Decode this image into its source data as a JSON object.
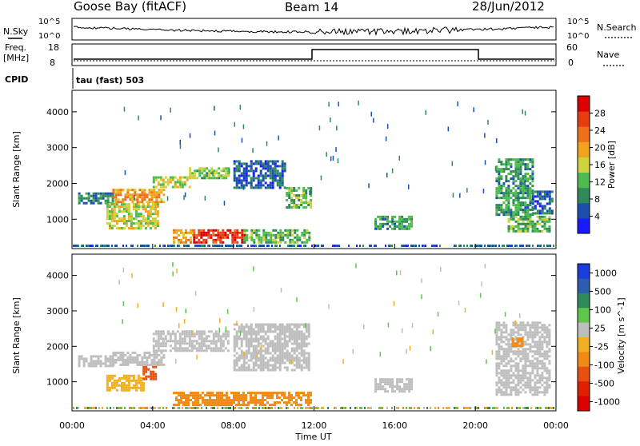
{
  "header": {
    "station": "Goose Bay (fitACF)",
    "beam": "Beam 14",
    "date": "28/Jun/2012"
  },
  "top_panels": {
    "nsky_label": "N.Sky",
    "nsky_top": "10^5",
    "nsky_bottom": "10^0",
    "nsearch_label": "N.Search",
    "nsearch_top": "10^5",
    "nsearch_bottom": "10^0",
    "freq_label": "Freq.",
    "freq_unit": "[MHz]",
    "freq_top": "18",
    "freq_bottom": "8",
    "nave_label": "Nave",
    "nave_top": "60",
    "nave_bottom": "0",
    "cpid_label": "CPID",
    "cpid_value": "tau (fast) 503"
  },
  "colors": {
    "power": [
      "#1a1aff",
      "#1a4fb0",
      "#2f8a5a",
      "#4dbb4d",
      "#cfd23c",
      "#f2a31c",
      "#f0701a",
      "#e83c12",
      "#dd0000"
    ],
    "velocity": [
      "#1a3ddd",
      "#2b5cb0",
      "#2f8a5a",
      "#5ec64a",
      "#bebebe",
      "#f0b020",
      "#f08a14",
      "#e85010",
      "#e02000",
      "#dd0000"
    ]
  },
  "chart_data": [
    {
      "type": "heatmap",
      "title": "Power",
      "xlabel": "Time UT",
      "ylabel": "Slant Range [km]",
      "x_ticks": [
        "00:00",
        "04:00",
        "08:00",
        "12:00",
        "16:00",
        "20:00",
        "00:00"
      ],
      "xlim": [
        0,
        24
      ],
      "y_ticks": [
        1000,
        2000,
        3000,
        4000
      ],
      "ylim": [
        180,
        4600
      ],
      "colorbar": {
        "label": "Power [dB]",
        "ticks": [
          4,
          8,
          12,
          16,
          20,
          24,
          28
        ],
        "range": [
          0,
          32
        ]
      },
      "regions": [
        {
          "t0": 0.3,
          "t1": 2.0,
          "r0": 1450,
          "r1": 1750,
          "value": 8
        },
        {
          "t0": 1.7,
          "t1": 4.2,
          "r0": 780,
          "r1": 1450,
          "value": 16
        },
        {
          "t0": 2.0,
          "t1": 4.5,
          "r0": 1450,
          "r1": 1850,
          "value": 20
        },
        {
          "t0": 4.0,
          "t1": 5.8,
          "r0": 1900,
          "r1": 2200,
          "value": 16
        },
        {
          "t0": 5.8,
          "t1": 7.8,
          "r0": 2150,
          "r1": 2450,
          "value": 14
        },
        {
          "t0": 5.0,
          "t1": 6.0,
          "r0": 380,
          "r1": 720,
          "value": 20
        },
        {
          "t0": 6.0,
          "t1": 8.5,
          "r0": 330,
          "r1": 720,
          "value": 28
        },
        {
          "t0": 8.5,
          "t1": 11.8,
          "r0": 340,
          "r1": 720,
          "value": 12
        },
        {
          "t0": 8.0,
          "t1": 10.6,
          "r0": 1900,
          "r1": 2650,
          "value": 6
        },
        {
          "t0": 10.6,
          "t1": 11.8,
          "r0": 1300,
          "r1": 1900,
          "value": 12
        },
        {
          "t0": 15.0,
          "t1": 16.9,
          "r0": 700,
          "r1": 1100,
          "value": 10
        },
        {
          "t0": 21.0,
          "t1": 22.8,
          "r0": 1100,
          "r1": 2700,
          "value": 10
        },
        {
          "t0": 21.6,
          "t1": 23.7,
          "r0": 650,
          "r1": 1100,
          "value": 12
        },
        {
          "t0": 22.8,
          "t1": 23.8,
          "r0": 1150,
          "r1": 1800,
          "value": 6
        }
      ]
    },
    {
      "type": "heatmap",
      "title": "Velocity",
      "xlabel": "Time UT",
      "ylabel": "Slant Range [km]",
      "x_ticks": [
        "00:00",
        "04:00",
        "08:00",
        "12:00",
        "16:00",
        "20:00",
        "00:00"
      ],
      "xlim": [
        0,
        24
      ],
      "y_ticks": [
        1000,
        2000,
        3000,
        4000
      ],
      "ylim": [
        180,
        4600
      ],
      "colorbar": {
        "label": "Velocity [m s^-1]",
        "ticks": [
          "1000",
          "500",
          "100",
          "25",
          "-25",
          "-100",
          "-500",
          "-1000"
        ]
      },
      "regions": [
        {
          "t0": 0.3,
          "t1": 2.0,
          "r0": 1450,
          "r1": 1750,
          "value": 0
        },
        {
          "t0": 1.7,
          "t1": 3.5,
          "r0": 780,
          "r1": 1200,
          "value": -80
        },
        {
          "t0": 3.5,
          "t1": 4.2,
          "r0": 1100,
          "r1": 1450,
          "value": -600
        },
        {
          "t0": 2.0,
          "t1": 4.5,
          "r0": 1450,
          "r1": 1850,
          "value": 0
        },
        {
          "t0": 4.0,
          "t1": 7.8,
          "r0": 1900,
          "r1": 2450,
          "value": 0
        },
        {
          "t0": 5.0,
          "t1": 11.8,
          "r0": 330,
          "r1": 720,
          "value": -150
        },
        {
          "t0": 8.0,
          "t1": 11.8,
          "r0": 1300,
          "r1": 2650,
          "value": 0
        },
        {
          "t0": 15.0,
          "t1": 16.9,
          "r0": 700,
          "r1": 1100,
          "value": 0
        },
        {
          "t0": 21.0,
          "t1": 23.7,
          "r0": 650,
          "r1": 2700,
          "value": 0
        },
        {
          "t0": 21.8,
          "t1": 22.3,
          "r0": 2000,
          "r1": 2250,
          "value": -150
        }
      ]
    }
  ]
}
